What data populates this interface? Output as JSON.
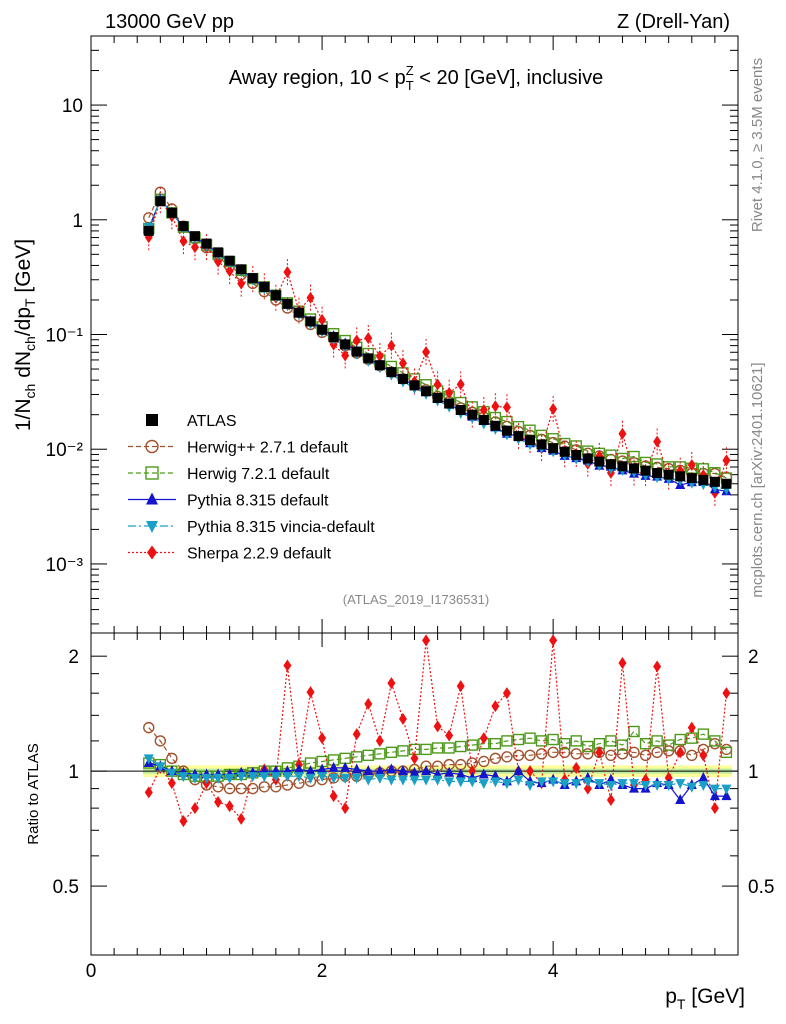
{
  "header": {
    "left": "13000 GeV pp",
    "right": "Z (Drell-Yan)"
  },
  "side": {
    "rivet": "Rivet 4.1.0, ≥ 3.5M events",
    "mcplots": "mcplots.cern.ch [arXiv:2401.10621]"
  },
  "chart_data": {
    "type": "scatter",
    "title": "Away region, 10 < p_T^Z < 20 [GeV], inclusive",
    "analysis_id": "(ATLAS_2019_I1736531)",
    "xlabel": "p_T [GeV]",
    "ylabel": "1/N_ch dN_ch/dp_T [GeV]",
    "ratio_ylabel": "Ratio to ATLAS",
    "xlim": [
      0,
      5.6
    ],
    "ylim": [
      0.00025,
      40
    ],
    "ratio_ylim": [
      0.33,
      2.3
    ],
    "yscale": "log",
    "x_ticks": [
      "0",
      "2",
      "4"
    ],
    "y_ticks": [
      "10⁻³",
      "10⁻²",
      "10⁻¹",
      "1",
      "10"
    ],
    "ratio_ticks": [
      "0.5",
      "1",
      "2"
    ],
    "legend_position": "middle-left",
    "x": [
      0.5,
      0.6,
      0.7,
      0.8,
      0.9,
      1.0,
      1.1,
      1.2,
      1.3,
      1.4,
      1.5,
      1.6,
      1.7,
      1.8,
      1.9,
      2.0,
      2.1,
      2.2,
      2.3,
      2.4,
      2.5,
      2.6,
      2.7,
      2.8,
      2.9,
      3.0,
      3.1,
      3.2,
      3.3,
      3.4,
      3.5,
      3.6,
      3.7,
      3.8,
      3.9,
      4.0,
      4.1,
      4.2,
      4.3,
      4.4,
      4.5,
      4.6,
      4.7,
      4.8,
      4.9,
      5.0,
      5.1,
      5.2,
      5.3,
      5.4,
      5.5
    ],
    "series": [
      {
        "name": "ATLAS",
        "color": "#000000",
        "marker": "square",
        "values": [
          0.8,
          1.45,
          1.15,
          0.88,
          0.72,
          0.62,
          0.52,
          0.44,
          0.37,
          0.31,
          0.26,
          0.22,
          0.185,
          0.155,
          0.13,
          0.11,
          0.095,
          0.082,
          0.071,
          0.062,
          0.054,
          0.047,
          0.041,
          0.036,
          0.032,
          0.028,
          0.025,
          0.022,
          0.02,
          0.018,
          0.016,
          0.0145,
          0.013,
          0.012,
          0.011,
          0.0102,
          0.0095,
          0.0089,
          0.0083,
          0.0078,
          0.0074,
          0.0071,
          0.0068,
          0.0065,
          0.0062,
          0.006,
          0.0058,
          0.0056,
          0.0054,
          0.0052,
          0.005
        ]
      },
      {
        "name": "Herwig++ 2.7.1 default",
        "color": "#a0522d",
        "marker": "circle-open",
        "line": "dashed",
        "ratio": [
          1.3,
          1.2,
          1.08,
          1.0,
          0.95,
          0.92,
          0.91,
          0.9,
          0.9,
          0.9,
          0.91,
          0.91,
          0.92,
          0.93,
          0.94,
          0.95,
          0.96,
          0.97,
          0.97,
          0.98,
          0.99,
          1.0,
          1.0,
          1.01,
          1.03,
          1.03,
          1.04,
          1.04,
          1.05,
          1.06,
          1.08,
          1.09,
          1.1,
          1.1,
          1.11,
          1.12,
          1.12,
          1.11,
          1.11,
          1.12,
          1.1,
          1.11,
          1.12,
          1.1,
          1.12,
          1.13,
          1.13,
          1.1,
          1.14,
          1.18,
          1.14
        ]
      },
      {
        "name": "Herwig 7.2.1 default",
        "color": "#4d9a1a",
        "marker": "square-open",
        "line": "dashed",
        "ratio": [
          1.05,
          1.04,
          1.0,
          0.98,
          0.97,
          0.97,
          0.97,
          0.98,
          0.98,
          0.99,
          1.0,
          1.0,
          1.02,
          1.03,
          1.05,
          1.06,
          1.07,
          1.08,
          1.09,
          1.1,
          1.11,
          1.12,
          1.13,
          1.14,
          1.14,
          1.15,
          1.15,
          1.16,
          1.17,
          1.18,
          1.18,
          1.2,
          1.21,
          1.22,
          1.2,
          1.21,
          1.18,
          1.2,
          1.16,
          1.18,
          1.2,
          1.17,
          1.27,
          1.18,
          1.2,
          1.17,
          1.21,
          1.22,
          1.25,
          1.2,
          1.12
        ]
      },
      {
        "name": "Pythia 8.315 default",
        "color": "#1414cc",
        "marker": "triangle-up",
        "line": "solid",
        "ratio": [
          1.05,
          1.03,
          1.0,
          0.99,
          0.98,
          0.98,
          0.98,
          0.98,
          0.99,
          0.99,
          1.0,
          1.0,
          1.0,
          1.01,
          1.0,
          1.01,
          1.02,
          1.02,
          1.01,
          1.0,
          1.0,
          1.01,
          1.0,
          0.99,
          1.0,
          0.98,
          0.99,
          0.98,
          0.96,
          0.98,
          0.97,
          0.94,
          1.0,
          0.94,
          0.93,
          0.95,
          0.92,
          0.94,
          0.96,
          0.92,
          0.95,
          0.92,
          0.9,
          0.9,
          0.93,
          0.92,
          0.84,
          0.92,
          0.96,
          0.86,
          0.86
        ]
      },
      {
        "name": "Pythia 8.315 vincia-default",
        "color": "#1a9fc6",
        "marker": "triangle-down",
        "line": "dashdot",
        "ratio": [
          1.08,
          1.03,
          0.99,
          0.97,
          0.96,
          0.96,
          0.96,
          0.96,
          0.97,
          0.97,
          0.97,
          0.97,
          0.97,
          0.97,
          0.96,
          0.97,
          0.96,
          0.96,
          0.96,
          0.95,
          0.96,
          0.95,
          0.95,
          0.95,
          0.95,
          0.95,
          0.94,
          0.94,
          0.94,
          0.93,
          0.94,
          0.93,
          0.95,
          0.92,
          0.94,
          0.94,
          0.93,
          0.93,
          0.94,
          0.93,
          0.92,
          0.93,
          0.93,
          0.92,
          0.92,
          0.92,
          0.93,
          0.91,
          0.92,
          0.9,
          0.9
        ]
      },
      {
        "name": "Sherpa 2.2.9 default",
        "color": "#ee1111",
        "marker": "diamond",
        "line": "dotted",
        "ratio": [
          0.88,
          1.02,
          0.93,
          0.74,
          0.8,
          0.93,
          0.83,
          0.81,
          0.75,
          0.98,
          1.01,
          0.95,
          1.89,
          1.04,
          1.61,
          1.22,
          0.86,
          0.8,
          1.25,
          1.5,
          1.2,
          1.7,
          1.37,
          1.08,
          2.2,
          1.31,
          1.24,
          1.67,
          1.0,
          1.22,
          1.48,
          1.6,
          1.0,
          1.0,
          0.93,
          2.2,
          0.95,
          1.02,
          0.9,
          1.12,
          0.84,
          1.92,
          0.92,
          0.95,
          1.88,
          0.96,
          1.12,
          1.3,
          1.1,
          0.8,
          1.6
        ]
      }
    ]
  }
}
